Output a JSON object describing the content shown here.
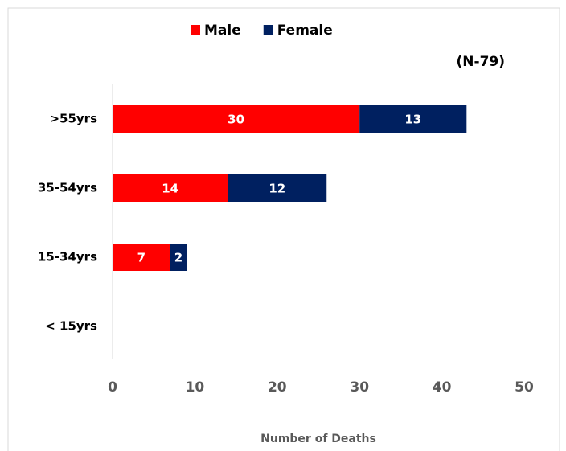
{
  "chart_data": {
    "type": "stacked-bar-horizontal",
    "annotation": "(N-79)",
    "x_label": "Number of Deaths",
    "categories": [
      ">55yrs",
      "35-54yrs",
      "15-34yrs",
      "< 15yrs"
    ],
    "series": [
      {
        "name": "Male",
        "color": "#ff0000",
        "values": [
          30,
          14,
          7,
          0
        ]
      },
      {
        "name": "Female",
        "color": "#002060",
        "values": [
          13,
          12,
          2,
          0
        ]
      }
    ],
    "xlim": [
      0,
      50
    ],
    "xticks": [
      0,
      10,
      20,
      30,
      40,
      50
    ],
    "grid": false,
    "legend": "top"
  }
}
